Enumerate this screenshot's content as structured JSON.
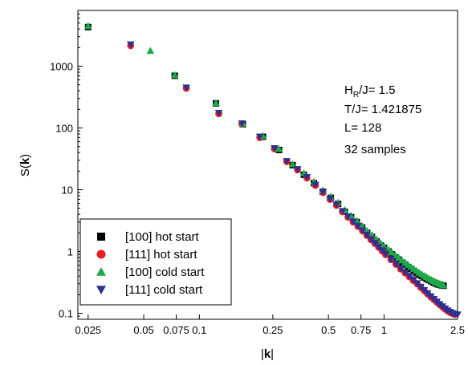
{
  "chart_data": {
    "type": "scatter",
    "xlabel_prefix": "|",
    "xlabel_bold": "k",
    "xlabel_suffix": "|",
    "ylabel_prefix": "S(",
    "ylabel_bold": "k",
    "ylabel_suffix": ")",
    "x_scale": "log",
    "y_scale": "log",
    "xlim": [
      0.022,
      2.5
    ],
    "ylim": [
      0.08,
      8000
    ],
    "x_ticks": [
      {
        "value": 0.025,
        "label": "0.025"
      },
      {
        "value": 0.05,
        "label": "0.05"
      },
      {
        "value": 0.075,
        "label": "0.075"
      },
      {
        "value": 0.1,
        "label": "0.1"
      },
      {
        "value": 0.25,
        "label": "0.25"
      },
      {
        "value": 0.5,
        "label": "0.5"
      },
      {
        "value": 0.75,
        "label": "0.75"
      },
      {
        "value": 1,
        "label": "1"
      },
      {
        "value": 2.5,
        "label": "2.5"
      }
    ],
    "y_ticks": [
      {
        "value": 0.1,
        "label": "0.1"
      },
      {
        "value": 1,
        "label": "1"
      },
      {
        "value": 10,
        "label": "10"
      },
      {
        "value": 100,
        "label": "100"
      },
      {
        "value": 1000,
        "label": "1000"
      }
    ],
    "grid": false,
    "legend_position": "bottom-left",
    "annotations": {
      "hr_H": "H",
      "hr_sub": "R",
      "hr_rest": "/J= 1.5",
      "temperature": "T/J= 1.421875",
      "size": "L= 128",
      "samples": "32 samples"
    },
    "series": [
      {
        "name": "[100] hot start",
        "marker": "square",
        "color": "#000000",
        "points": [
          [
            0.025,
            4300
          ],
          [
            0.0736,
            700
          ],
          [
            0.123,
            250
          ],
          [
            0.172,
            115
          ],
          [
            0.221,
            72
          ],
          [
            0.27,
            44
          ],
          [
            0.32,
            25
          ],
          [
            0.368,
            17.5
          ],
          [
            0.417,
            12.8
          ],
          [
            0.466,
            9.3
          ],
          [
            0.515,
            7.4
          ],
          [
            0.564,
            5.9
          ],
          [
            0.613,
            4.4
          ],
          [
            0.663,
            3.6
          ],
          [
            0.712,
            3.0
          ],
          [
            0.761,
            2.45
          ],
          [
            0.81,
            2.0
          ],
          [
            0.86,
            1.72
          ],
          [
            0.91,
            1.46
          ],
          [
            0.96,
            1.25
          ],
          [
            1.0,
            1.15
          ],
          [
            1.06,
            1.0
          ],
          [
            1.1,
            0.9
          ],
          [
            1.15,
            0.8
          ],
          [
            1.2,
            0.74
          ],
          [
            1.25,
            0.66
          ],
          [
            1.3,
            0.61
          ],
          [
            1.35,
            0.56
          ],
          [
            1.4,
            0.52
          ],
          [
            1.45,
            0.48
          ],
          [
            1.5,
            0.45
          ],
          [
            1.55,
            0.42
          ],
          [
            1.6,
            0.4
          ],
          [
            1.65,
            0.38
          ],
          [
            1.7,
            0.36
          ],
          [
            1.75,
            0.345
          ],
          [
            1.8,
            0.33
          ],
          [
            1.85,
            0.315
          ],
          [
            1.9,
            0.305
          ],
          [
            1.95,
            0.295
          ],
          [
            2.0,
            0.29
          ],
          [
            2.05,
            0.283
          ],
          [
            2.1,
            0.28
          ]
        ]
      },
      {
        "name": "[111] hot start",
        "marker": "circle",
        "color": "#ee1c24",
        "points": [
          [
            0.0425,
            2150
          ],
          [
            0.085,
            440
          ],
          [
            0.1275,
            170
          ],
          [
            0.17,
            116
          ],
          [
            0.2125,
            70
          ],
          [
            0.255,
            46
          ],
          [
            0.2975,
            28.5
          ],
          [
            0.34,
            21
          ],
          [
            0.3825,
            15.5
          ],
          [
            0.425,
            11.8
          ],
          [
            0.4675,
            9.0
          ],
          [
            0.51,
            7.0
          ],
          [
            0.5525,
            5.6
          ],
          [
            0.595,
            4.4
          ],
          [
            0.6375,
            3.6
          ],
          [
            0.68,
            3.0
          ],
          [
            0.7225,
            2.55
          ],
          [
            0.765,
            2.15
          ],
          [
            0.8075,
            1.82
          ],
          [
            0.85,
            1.55
          ],
          [
            0.8925,
            1.35
          ],
          [
            0.935,
            1.17
          ],
          [
            0.9775,
            1.02
          ],
          [
            1.02,
            0.89
          ],
          [
            1.09,
            0.74
          ],
          [
            1.16,
            0.62
          ],
          [
            1.23,
            0.52
          ],
          [
            1.3,
            0.45
          ],
          [
            1.37,
            0.39
          ],
          [
            1.44,
            0.34
          ],
          [
            1.51,
            0.3
          ],
          [
            1.58,
            0.262
          ],
          [
            1.65,
            0.232
          ],
          [
            1.72,
            0.206
          ],
          [
            1.79,
            0.185
          ],
          [
            1.86,
            0.167
          ],
          [
            1.93,
            0.152
          ],
          [
            2.0,
            0.138
          ],
          [
            2.07,
            0.127
          ],
          [
            2.14,
            0.117
          ],
          [
            2.21,
            0.109
          ],
          [
            2.28,
            0.103
          ],
          [
            2.35,
            0.099
          ],
          [
            2.42,
            0.096
          ]
        ]
      },
      {
        "name": "[100] cold start",
        "marker": "triangle-up",
        "color": "#1da84a",
        "points": [
          [
            0.025,
            4500
          ],
          [
            0.0543,
            1780
          ],
          [
            0.0736,
            720
          ],
          [
            0.123,
            255
          ],
          [
            0.172,
            118
          ],
          [
            0.221,
            74
          ],
          [
            0.27,
            46
          ],
          [
            0.32,
            26
          ],
          [
            0.368,
            18.5
          ],
          [
            0.417,
            13.5
          ],
          [
            0.466,
            9.8
          ],
          [
            0.515,
            7.8
          ],
          [
            0.564,
            6.2
          ],
          [
            0.613,
            4.7
          ],
          [
            0.663,
            3.8
          ],
          [
            0.712,
            3.15
          ],
          [
            0.761,
            2.6
          ],
          [
            0.81,
            2.15
          ],
          [
            0.86,
            1.85
          ],
          [
            0.91,
            1.58
          ],
          [
            0.96,
            1.36
          ],
          [
            1.0,
            1.22
          ],
          [
            1.06,
            1.07
          ],
          [
            1.1,
            0.97
          ],
          [
            1.15,
            0.87
          ],
          [
            1.2,
            0.8
          ],
          [
            1.25,
            0.72
          ],
          [
            1.3,
            0.66
          ],
          [
            1.35,
            0.61
          ],
          [
            1.4,
            0.565
          ],
          [
            1.45,
            0.525
          ],
          [
            1.5,
            0.49
          ],
          [
            1.55,
            0.455
          ],
          [
            1.6,
            0.43
          ],
          [
            1.65,
            0.405
          ],
          [
            1.7,
            0.385
          ],
          [
            1.75,
            0.365
          ],
          [
            1.8,
            0.35
          ],
          [
            1.85,
            0.335
          ],
          [
            1.9,
            0.32
          ],
          [
            1.95,
            0.31
          ],
          [
            2.0,
            0.3
          ],
          [
            2.05,
            0.29
          ],
          [
            2.1,
            0.285
          ]
        ]
      },
      {
        "name": "[111] cold start",
        "marker": "triangle-down",
        "color": "#2e3192",
        "points": [
          [
            0.0425,
            2250
          ],
          [
            0.085,
            450
          ],
          [
            0.1275,
            175
          ],
          [
            0.17,
            118
          ],
          [
            0.2125,
            72
          ],
          [
            0.255,
            47
          ],
          [
            0.2975,
            29
          ],
          [
            0.34,
            21.5
          ],
          [
            0.3825,
            16
          ],
          [
            0.425,
            12
          ],
          [
            0.4675,
            9.2
          ],
          [
            0.51,
            7.1
          ],
          [
            0.5525,
            5.7
          ],
          [
            0.595,
            4.5
          ],
          [
            0.6375,
            3.7
          ],
          [
            0.68,
            3.05
          ],
          [
            0.7225,
            2.6
          ],
          [
            0.765,
            2.2
          ],
          [
            0.8075,
            1.86
          ],
          [
            0.85,
            1.58
          ],
          [
            0.8925,
            1.37
          ],
          [
            0.935,
            1.19
          ],
          [
            0.9775,
            1.04
          ],
          [
            1.02,
            0.91
          ],
          [
            1.09,
            0.75
          ],
          [
            1.16,
            0.63
          ],
          [
            1.23,
            0.53
          ],
          [
            1.3,
            0.46
          ],
          [
            1.37,
            0.4
          ],
          [
            1.44,
            0.35
          ],
          [
            1.51,
            0.305
          ],
          [
            1.58,
            0.268
          ],
          [
            1.65,
            0.237
          ],
          [
            1.72,
            0.21
          ],
          [
            1.79,
            0.188
          ],
          [
            1.86,
            0.17
          ],
          [
            1.93,
            0.154
          ],
          [
            2.0,
            0.14
          ],
          [
            2.07,
            0.129
          ],
          [
            2.14,
            0.119
          ],
          [
            2.21,
            0.111
          ],
          [
            2.28,
            0.105
          ],
          [
            2.35,
            0.1
          ],
          [
            2.42,
            0.097
          ],
          [
            2.5,
            0.095
          ]
        ]
      }
    ]
  }
}
